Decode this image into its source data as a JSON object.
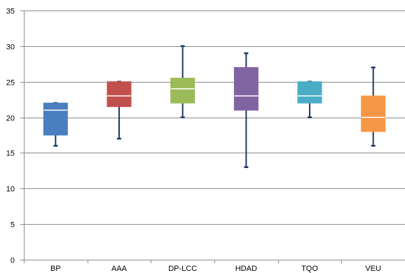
{
  "chart_data": {
    "type": "boxplot",
    "title": "",
    "xlabel": "",
    "ylabel": "",
    "ylim": [
      0,
      35
    ],
    "yticks": [
      0,
      5,
      10,
      15,
      20,
      25,
      30,
      35
    ],
    "grid": "horizontal",
    "legend": "none",
    "categories": [
      "BP",
      "AAA",
      "DP-LCC",
      "HDAD",
      "TQO",
      "VEU"
    ],
    "boxes": [
      {
        "min": 16,
        "q1": 17.5,
        "median": 21,
        "q3": 22,
        "max": 22,
        "color": "#4a7ebf"
      },
      {
        "min": 17,
        "q1": 21.5,
        "median": 23,
        "q3": 25,
        "max": 25,
        "color": "#c0504d"
      },
      {
        "min": 20,
        "q1": 22,
        "median": 24,
        "q3": 25.5,
        "max": 30,
        "color": "#9bbb59"
      },
      {
        "min": 13,
        "q1": 21,
        "median": 23,
        "q3": 27,
        "max": 29,
        "color": "#8064a2"
      },
      {
        "min": 20,
        "q1": 22,
        "median": 23,
        "q3": 25,
        "max": 25,
        "color": "#4bacc6"
      },
      {
        "min": 16,
        "q1": 18,
        "median": 20,
        "q3": 23,
        "max": 27,
        "color": "#f79646"
      }
    ],
    "whisker_color": "#1f3864"
  }
}
